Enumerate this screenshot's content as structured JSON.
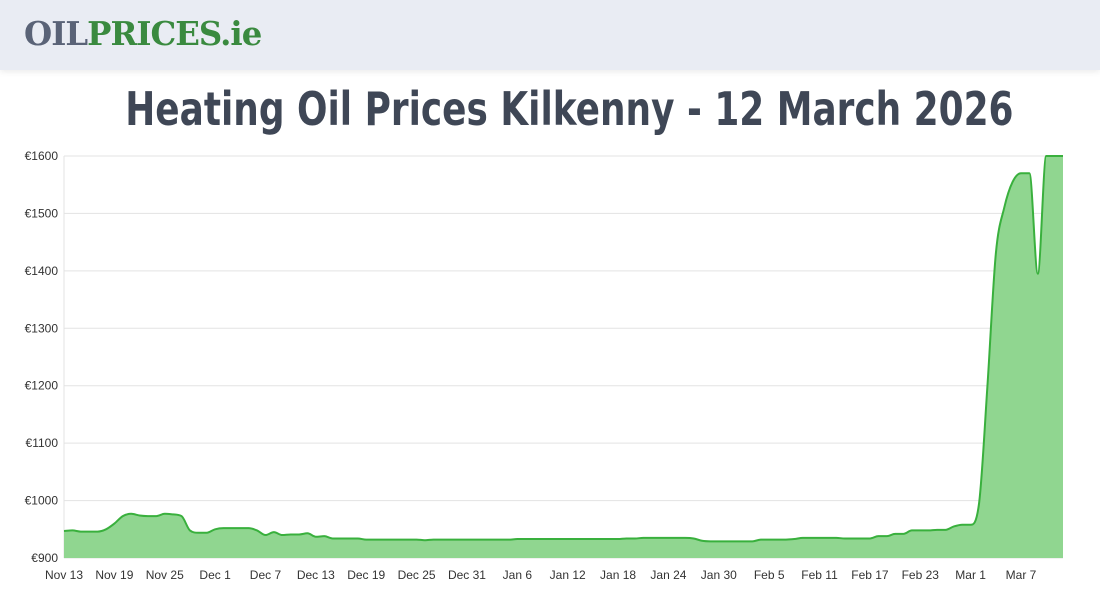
{
  "header": {
    "logo_part1": "OIL",
    "logo_part2": "PRICES.ie"
  },
  "page_title": "Heating Oil Prices Kilkenny - 12 March 2026",
  "colors": {
    "line": "#39b03d",
    "fill": "#90d690",
    "grid": "#e3e3e3",
    "title": "#3f4756",
    "logo_grey": "#5a6377",
    "logo_green": "#3a8a3f"
  },
  "chart_data": {
    "type": "area",
    "title": "",
    "xlabel": "",
    "ylabel": "",
    "ylim": [
      900,
      1600
    ],
    "grid": true,
    "y_ticks": [
      "€900",
      "€1000",
      "€1100",
      "€1200",
      "€1300",
      "€1400",
      "€1500",
      "€1600"
    ],
    "y_tick_values": [
      900,
      1000,
      1100,
      1200,
      1300,
      1400,
      1500,
      1600
    ],
    "x_ticks": [
      "Nov 13",
      "Nov 19",
      "Nov 25",
      "Dec 1",
      "Dec 7",
      "Dec 13",
      "Dec 19",
      "Dec 25",
      "Dec 31",
      "Jan 6",
      "Jan 12",
      "Jan 18",
      "Jan 24",
      "Jan 30",
      "Feb 5",
      "Feb 11",
      "Feb 17",
      "Feb 23",
      "Mar 1",
      "Mar 7"
    ],
    "x": [
      "Nov 13",
      "Nov 14",
      "Nov 15",
      "Nov 16",
      "Nov 17",
      "Nov 18",
      "Nov 19",
      "Nov 20",
      "Nov 21",
      "Nov 22",
      "Nov 23",
      "Nov 24",
      "Nov 25",
      "Nov 26",
      "Nov 27",
      "Nov 28",
      "Nov 29",
      "Nov 30",
      "Dec 1",
      "Dec 2",
      "Dec 3",
      "Dec 4",
      "Dec 5",
      "Dec 6",
      "Dec 7",
      "Dec 8",
      "Dec 9",
      "Dec 10",
      "Dec 11",
      "Dec 12",
      "Dec 13",
      "Dec 14",
      "Dec 15",
      "Dec 16",
      "Dec 17",
      "Dec 18",
      "Dec 19",
      "Dec 20",
      "Dec 21",
      "Dec 22",
      "Dec 23",
      "Dec 24",
      "Dec 25",
      "Dec 26",
      "Dec 27",
      "Dec 28",
      "Dec 29",
      "Dec 30",
      "Dec 31",
      "Jan 1",
      "Jan 2",
      "Jan 3",
      "Jan 4",
      "Jan 5",
      "Jan 6",
      "Jan 7",
      "Jan 8",
      "Jan 9",
      "Jan 10",
      "Jan 11",
      "Jan 12",
      "Jan 13",
      "Jan 14",
      "Jan 15",
      "Jan 16",
      "Jan 17",
      "Jan 18",
      "Jan 19",
      "Jan 20",
      "Jan 21",
      "Jan 22",
      "Jan 23",
      "Jan 24",
      "Jan 25",
      "Jan 26",
      "Jan 27",
      "Jan 28",
      "Jan 29",
      "Jan 30",
      "Jan 31",
      "Feb 1",
      "Feb 2",
      "Feb 3",
      "Feb 4",
      "Feb 5",
      "Feb 6",
      "Feb 7",
      "Feb 8",
      "Feb 9",
      "Feb 10",
      "Feb 11",
      "Feb 12",
      "Feb 13",
      "Feb 14",
      "Feb 15",
      "Feb 16",
      "Feb 17",
      "Feb 18",
      "Feb 19",
      "Feb 20",
      "Feb 21",
      "Feb 22",
      "Feb 23",
      "Feb 24",
      "Feb 25",
      "Feb 26",
      "Feb 27",
      "Feb 28",
      "Mar 1",
      "Mar 2",
      "Mar 3",
      "Mar 4",
      "Mar 5",
      "Mar 6",
      "Mar 7",
      "Mar 8",
      "Mar 9",
      "Mar 10",
      "Mar 11",
      "Mar 12"
    ],
    "series": [
      {
        "values": [
          947,
          948,
          946,
          946,
          946,
          950,
          960,
          973,
          977,
          974,
          973,
          973,
          977,
          976,
          973,
          948,
          944,
          944,
          950,
          952,
          952,
          952,
          952,
          948,
          940,
          945,
          940,
          941,
          941,
          943,
          937,
          938,
          934,
          934,
          934,
          934,
          932,
          932,
          932,
          932,
          932,
          932,
          932,
          931,
          932,
          932,
          932,
          932,
          932,
          932,
          932,
          932,
          932,
          932,
          933,
          933,
          933,
          933,
          933,
          933,
          933,
          933,
          933,
          933,
          933,
          933,
          933,
          934,
          934,
          935,
          935,
          935,
          935,
          935,
          935,
          934,
          930,
          929,
          929,
          929,
          929,
          929,
          929,
          932,
          932,
          932,
          932,
          933,
          935,
          935,
          935,
          935,
          935,
          934,
          934,
          934,
          934,
          938,
          938,
          942,
          942,
          948,
          948,
          948,
          949,
          949,
          955,
          958,
          958,
          995,
          1200,
          1430,
          1510,
          1555,
          1570,
          1570,
          1395,
          1600,
          1600,
          1600
        ]
      }
    ]
  }
}
